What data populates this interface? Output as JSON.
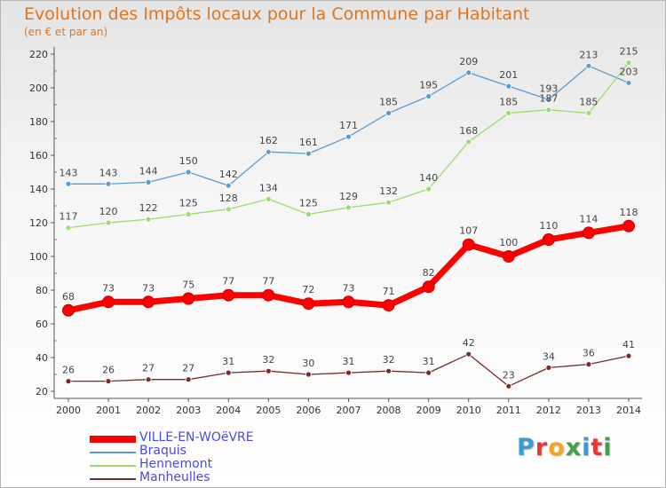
{
  "chart_data": {
    "type": "line",
    "title": "Evolution des Impôts locaux pour la Commune par Habitant",
    "subtitle": "(en € et par an)",
    "xlabel": "",
    "ylabel": "",
    "x": [
      "2000",
      "2001",
      "2002",
      "2003",
      "2004",
      "2005",
      "2006",
      "2007",
      "2008",
      "2009",
      "2010",
      "2011",
      "2012",
      "2013",
      "2014"
    ],
    "ylim": [
      20,
      220
    ],
    "yticks": [
      20,
      40,
      60,
      80,
      100,
      120,
      140,
      160,
      180,
      200,
      220
    ],
    "grid": false,
    "legend_position": "bottom-left",
    "series": [
      {
        "name": "Braquis",
        "color": "#5b9bd5",
        "values": [
          143,
          143,
          144,
          150,
          142,
          162,
          161,
          171,
          185,
          195,
          209,
          201,
          193,
          213,
          203
        ]
      },
      {
        "name": "Hennemont",
        "color": "#9bdc70",
        "values": [
          117,
          120,
          122,
          125,
          128,
          134,
          125,
          129,
          132,
          140,
          168,
          185,
          187,
          185,
          215
        ]
      },
      {
        "name": "Manheulles",
        "color": "#7a2a2a",
        "values": [
          26,
          26,
          27,
          27,
          31,
          32,
          30,
          31,
          32,
          31,
          42,
          23,
          34,
          36,
          41
        ]
      },
      {
        "name": "VILLE-EN-WOëVRE",
        "color": "#ff0000",
        "values": [
          68,
          73,
          73,
          75,
          77,
          77,
          72,
          73,
          71,
          82,
          107,
          100,
          110,
          114,
          118
        ]
      }
    ]
  },
  "legend": {
    "items": [
      {
        "label": "VILLE-EN-WOëVRE",
        "color": "#ff0000"
      },
      {
        "label": "Braquis",
        "color": "#5b9bd5"
      },
      {
        "label": "Hennemont",
        "color": "#9bdc70"
      },
      {
        "label": "Manheulles",
        "color": "#7a2a2a"
      }
    ]
  },
  "logo": {
    "letters": [
      "P",
      "r",
      "o",
      "x",
      "i",
      "t",
      "i"
    ],
    "colors": [
      "#3a9ad9",
      "#e53935",
      "#f5a623",
      "#43a047",
      "#3a9ad9",
      "#e53935",
      "#43a047"
    ]
  }
}
